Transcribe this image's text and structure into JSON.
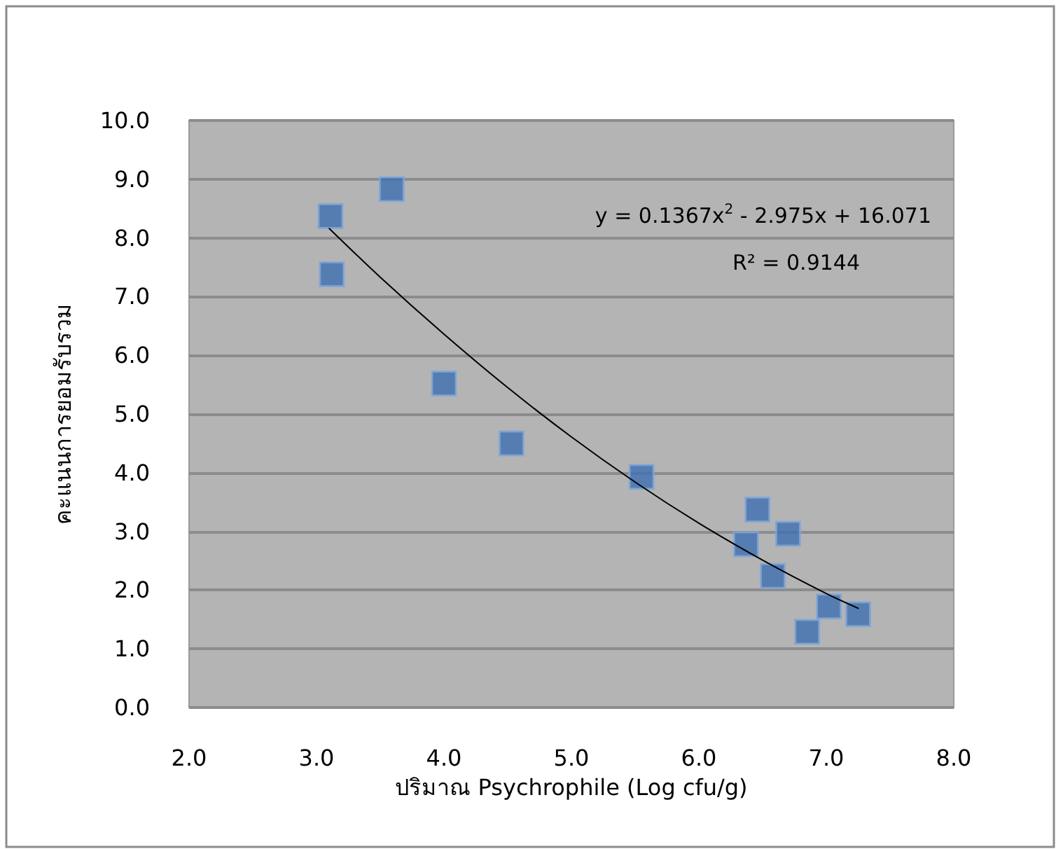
{
  "chart_data": {
    "type": "scatter",
    "xlabel": "ปริมาณ Psychrophile (Log cfu/g)",
    "ylabel": "คะแนนการยอมรับรวม",
    "xlim": [
      2.0,
      8.0
    ],
    "xticks": [
      {
        "value": 2,
        "label": "2.0"
      },
      {
        "value": 3,
        "label": "3.0"
      },
      {
        "value": 4,
        "label": "4.0"
      },
      {
        "value": 5,
        "label": "5.0"
      },
      {
        "value": 6,
        "label": "6.0"
      },
      {
        "value": 7,
        "label": "7.0"
      },
      {
        "value": 8,
        "label": "8.0"
      }
    ],
    "ylim": [
      0.0,
      10.0
    ],
    "yticks": [
      {
        "value": 0,
        "label": "0.0"
      },
      {
        "value": 1,
        "label": "1.0"
      },
      {
        "value": 2,
        "label": "2.0"
      },
      {
        "value": 3,
        "label": "3.0"
      },
      {
        "value": 4,
        "label": "4.0"
      },
      {
        "value": 5,
        "label": "5.0"
      },
      {
        "value": 6,
        "label": "6.0"
      },
      {
        "value": 7,
        "label": "7.0"
      },
      {
        "value": 8,
        "label": "8.0"
      },
      {
        "value": 9,
        "label": "9.0"
      },
      {
        "value": 10,
        "label": "10.0"
      }
    ],
    "grid": "y",
    "marker": "square",
    "series": [
      {
        "color": "#3d6fb0",
        "x": [
          3.11,
          3.59,
          3.12,
          4.0,
          4.53,
          5.55,
          6.46,
          6.7,
          6.37,
          6.58,
          7.02,
          7.25,
          6.85
        ],
        "values": [
          8.37,
          8.83,
          7.38,
          5.52,
          4.5,
          3.93,
          3.37,
          2.96,
          2.78,
          2.24,
          1.72,
          1.59,
          1.29
        ]
      },
      {
        "type": "line",
        "color": "#000000",
        "marker": "none",
        "line_style": "solid",
        "x": [
          3.1,
          3.5,
          4.0,
          4.5,
          5.0,
          5.5,
          6.0,
          6.5,
          7.0,
          7.25
        ],
        "values": [
          8.16,
          7.33,
          6.36,
          5.45,
          4.61,
          3.84,
          3.14,
          2.51,
          1.94,
          1.69
        ]
      }
    ],
    "annotations": [
      "y = 0.1367x$^{2}$ - 2.975x + 16.071",
      "R² = 0.9144"
    ]
  }
}
